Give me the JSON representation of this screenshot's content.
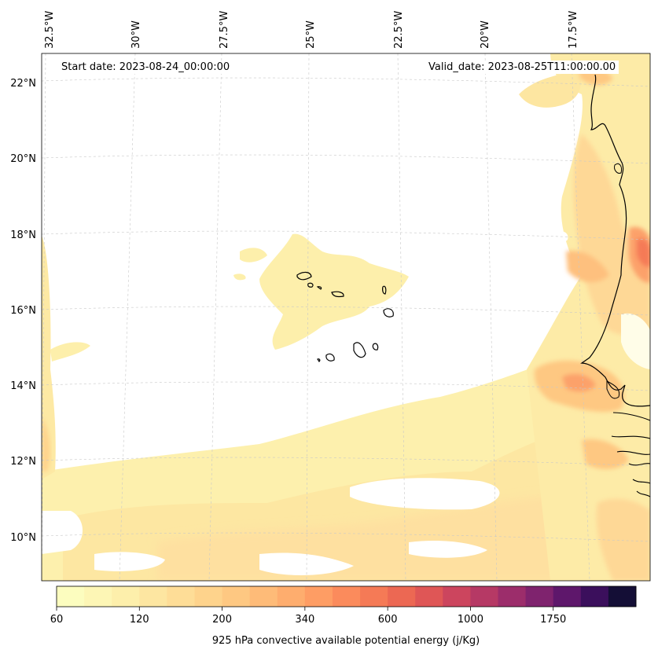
{
  "map": {
    "start_date": "Start date: 2023-08-24_00:00:00",
    "valid_date": "Valid_date: 2023-08-25T11:00:00.00",
    "lon_labels": [
      "32.5°W",
      "30°W",
      "27.5°W",
      "25°W",
      "22.5°W",
      "20°W",
      "17.5°W"
    ],
    "lat_labels": [
      "22°N",
      "20°N",
      "18°N",
      "16°N",
      "14°N",
      "12°N",
      "10°N"
    ]
  },
  "colorbar": {
    "title": "925 hPa convective available potential energy (j/Kg)",
    "tick_labels": [
      "60",
      "120",
      "200",
      "340",
      "600",
      "1000",
      "1750"
    ],
    "colors": [
      "#fcfdbf",
      "#fdf6b5",
      "#fdefab",
      "#fde6a1",
      "#fedd97",
      "#fed38c",
      "#fec882",
      "#febb78",
      "#fead6e",
      "#fe9d64",
      "#fb8b5c",
      "#f57a56",
      "#ec6853",
      "#df5656",
      "#cc455e",
      "#b63965",
      "#9c2d6b",
      "#7f236e",
      "#5e176b",
      "#3b0f5c",
      "#140e36"
    ]
  }
}
